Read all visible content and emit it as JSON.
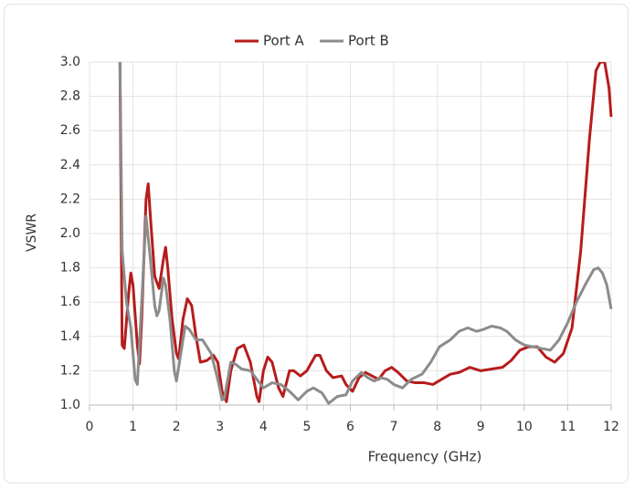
{
  "chart_data": {
    "type": "line",
    "x_label": "Frequency (GHz)",
    "y_label": "VSWR",
    "xlim": [
      0,
      12
    ],
    "xticks": [
      0,
      1,
      2,
      3,
      4,
      5,
      6,
      7,
      8,
      9,
      10,
      11,
      12
    ],
    "ylim": [
      1,
      3
    ],
    "yticks": [
      {
        "value": 1,
        "label": "1.0"
      },
      1.2,
      1.4,
      1.6,
      1.8,
      {
        "value": 2,
        "label": "2.0"
      },
      2.2,
      2.4,
      2.6,
      2.8,
      {
        "value": 3,
        "label": "3.0"
      }
    ],
    "grid": true,
    "legend": "top",
    "series": [
      {
        "name": "Port A",
        "color": "#b71c1c",
        "x": [
          0.7,
          0.75,
          0.8,
          0.9,
          0.95,
          1.0,
          1.1,
          1.15,
          1.2,
          1.3,
          1.35,
          1.4,
          1.5,
          1.6,
          1.7,
          1.75,
          1.8,
          1.9,
          2.0,
          2.05,
          2.15,
          2.25,
          2.35,
          2.45,
          2.55,
          2.7,
          2.85,
          2.95,
          3.05,
          3.15,
          3.25,
          3.4,
          3.55,
          3.7,
          3.85,
          3.9,
          4.0,
          4.1,
          4.2,
          4.35,
          4.45,
          4.6,
          4.7,
          4.85,
          5.0,
          5.2,
          5.3,
          5.45,
          5.6,
          5.8,
          5.9,
          6.05,
          6.2,
          6.35,
          6.5,
          6.65,
          6.8,
          6.95,
          7.1,
          7.3,
          7.5,
          7.7,
          7.9,
          8.1,
          8.3,
          8.5,
          8.75,
          9.0,
          9.25,
          9.5,
          9.7,
          9.9,
          10.1,
          10.3,
          10.5,
          10.7,
          10.9,
          11.1,
          11.3,
          11.5,
          11.65,
          11.75,
          11.85,
          11.95,
          12.0
        ],
        "values": [
          3.0,
          1.35,
          1.33,
          1.65,
          1.77,
          1.7,
          1.35,
          1.24,
          1.5,
          2.2,
          2.29,
          2.1,
          1.75,
          1.68,
          1.85,
          1.92,
          1.8,
          1.5,
          1.3,
          1.27,
          1.5,
          1.62,
          1.58,
          1.4,
          1.25,
          1.26,
          1.29,
          1.25,
          1.08,
          1.02,
          1.2,
          1.33,
          1.35,
          1.25,
          1.05,
          1.02,
          1.2,
          1.28,
          1.25,
          1.1,
          1.05,
          1.2,
          1.2,
          1.17,
          1.2,
          1.29,
          1.29,
          1.2,
          1.16,
          1.17,
          1.12,
          1.08,
          1.16,
          1.19,
          1.17,
          1.15,
          1.2,
          1.22,
          1.19,
          1.14,
          1.13,
          1.13,
          1.12,
          1.15,
          1.18,
          1.19,
          1.22,
          1.2,
          1.21,
          1.22,
          1.26,
          1.32,
          1.34,
          1.34,
          1.28,
          1.25,
          1.3,
          1.45,
          1.9,
          2.55,
          2.95,
          3.0,
          3.0,
          2.85,
          2.68
        ]
      },
      {
        "name": "Port B",
        "color": "#8c8c8c",
        "x": [
          0.7,
          0.75,
          0.85,
          0.95,
          1.05,
          1.1,
          1.2,
          1.3,
          1.4,
          1.5,
          1.55,
          1.6,
          1.7,
          1.75,
          1.85,
          1.95,
          2.0,
          2.1,
          2.2,
          2.3,
          2.45,
          2.6,
          2.8,
          2.95,
          3.05,
          3.1,
          3.25,
          3.35,
          3.5,
          3.7,
          3.85,
          4.0,
          4.2,
          4.4,
          4.6,
          4.8,
          5.0,
          5.15,
          5.35,
          5.5,
          5.7,
          5.9,
          6.05,
          6.25,
          6.4,
          6.55,
          6.7,
          6.85,
          7.0,
          7.2,
          7.4,
          7.65,
          7.85,
          8.05,
          8.3,
          8.5,
          8.7,
          8.9,
          9.05,
          9.25,
          9.45,
          9.6,
          9.8,
          10.0,
          10.2,
          10.4,
          10.6,
          10.8,
          11.0,
          11.2,
          11.4,
          11.6,
          11.7,
          11.8,
          11.9,
          12.0
        ],
        "values": [
          3.0,
          1.9,
          1.6,
          1.45,
          1.15,
          1.12,
          1.6,
          2.1,
          1.85,
          1.58,
          1.52,
          1.55,
          1.74,
          1.7,
          1.5,
          1.2,
          1.14,
          1.3,
          1.46,
          1.44,
          1.38,
          1.38,
          1.3,
          1.15,
          1.03,
          1.04,
          1.25,
          1.24,
          1.21,
          1.2,
          1.15,
          1.1,
          1.13,
          1.12,
          1.08,
          1.03,
          1.08,
          1.1,
          1.07,
          1.01,
          1.05,
          1.06,
          1.14,
          1.19,
          1.16,
          1.14,
          1.16,
          1.15,
          1.12,
          1.1,
          1.15,
          1.18,
          1.25,
          1.34,
          1.38,
          1.43,
          1.45,
          1.43,
          1.44,
          1.46,
          1.45,
          1.43,
          1.38,
          1.35,
          1.34,
          1.33,
          1.32,
          1.38,
          1.48,
          1.6,
          1.7,
          1.79,
          1.8,
          1.77,
          1.7,
          1.56
        ]
      }
    ]
  }
}
